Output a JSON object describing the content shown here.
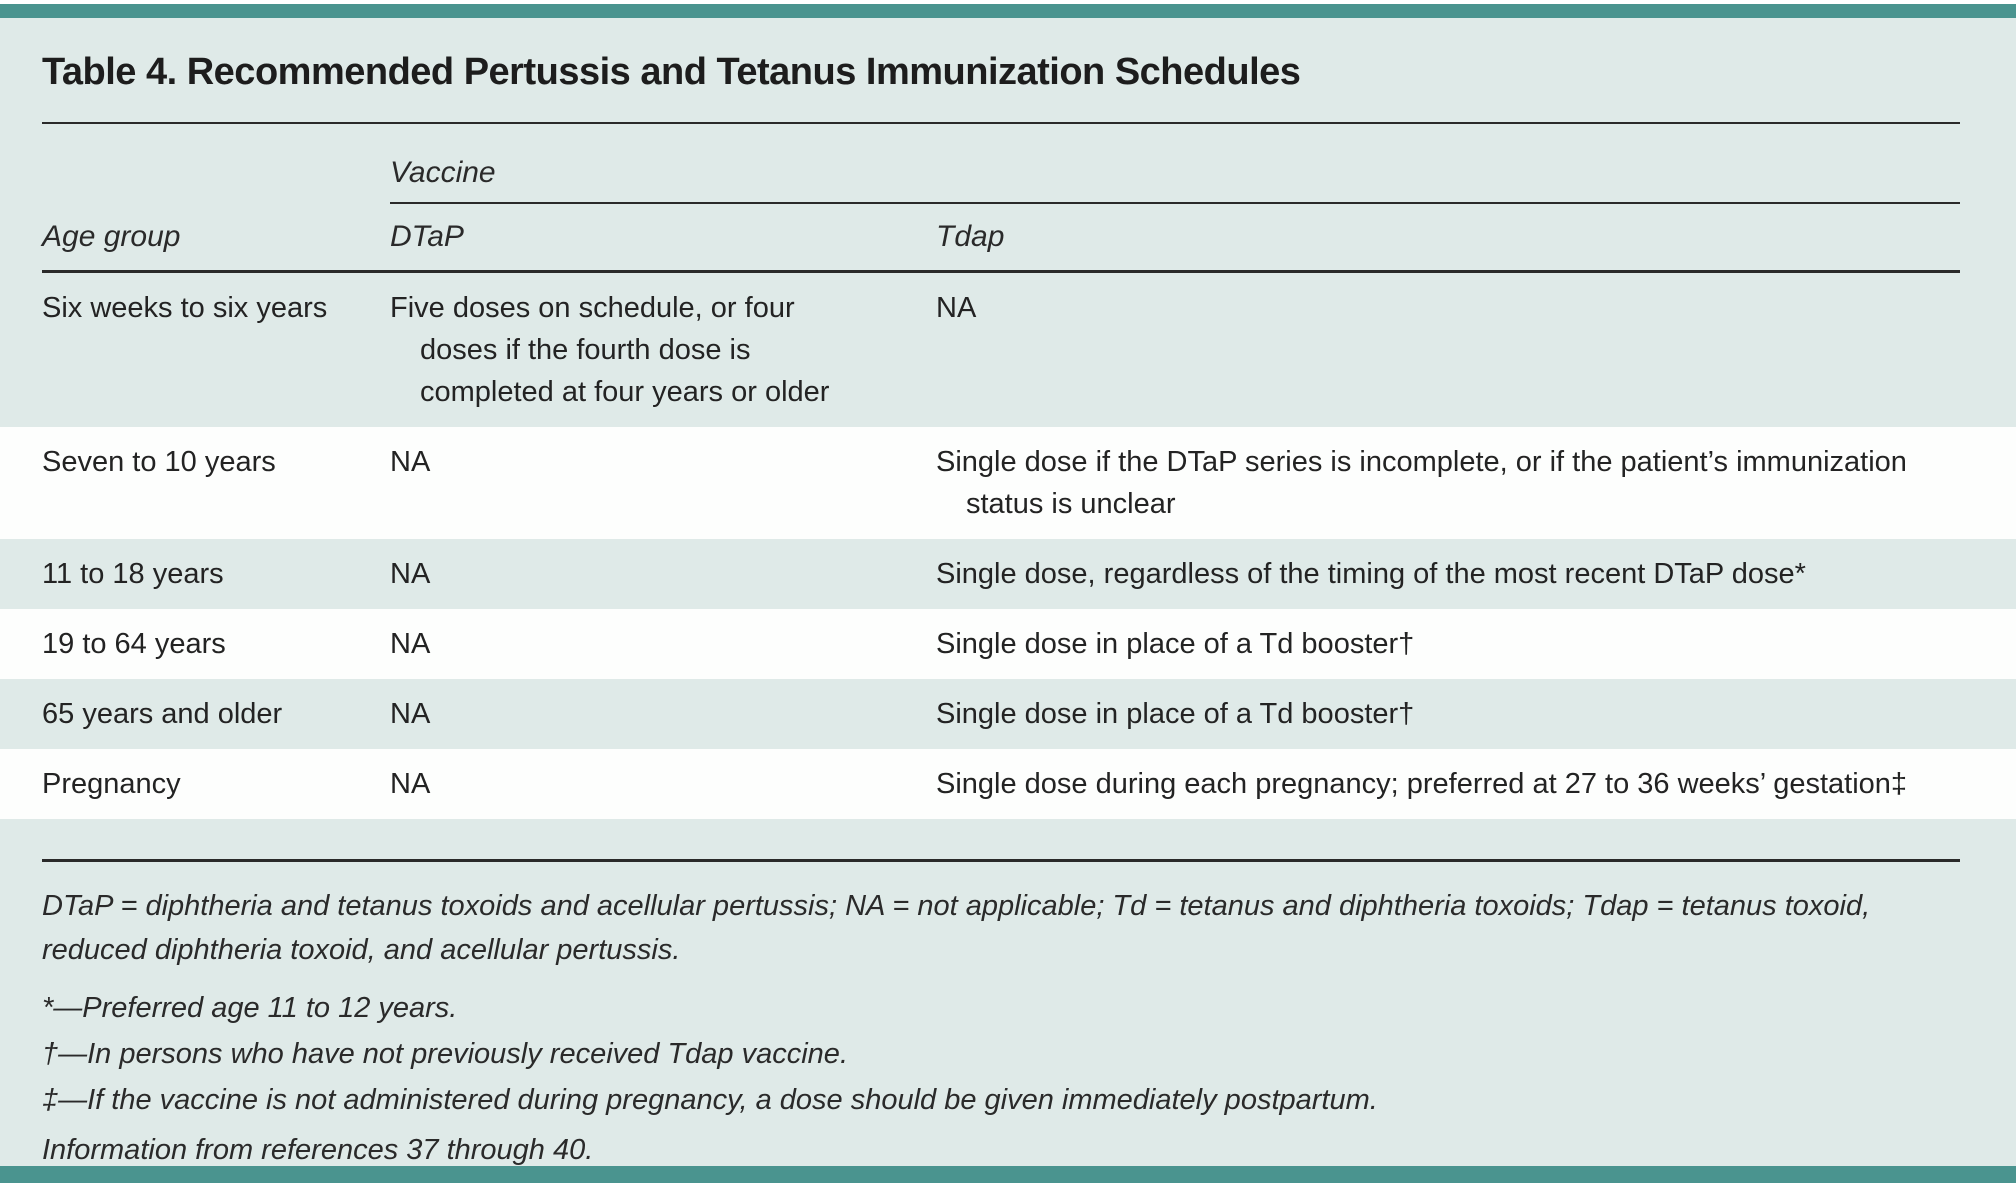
{
  "title": "Table 4. Recommended Pertussis and Tetanus Immunization Schedules",
  "table": {
    "group_header": "Vaccine",
    "columns": [
      "Age group",
      "DTaP",
      "Tdap"
    ],
    "rows": [
      {
        "age_group": "Six weeks to six years",
        "dtap": "Five doses on schedule, or four doses if the fourth dose is completed at four years or older",
        "tdap": "NA"
      },
      {
        "age_group": "Seven to 10 years",
        "dtap": "NA",
        "tdap": "Single dose if the DTaP series is incomplete, or if the patient’s immunization status is unclear"
      },
      {
        "age_group": "11 to 18 years",
        "dtap": "NA",
        "tdap": "Single dose, regardless of the timing of the most recent DTaP dose*"
      },
      {
        "age_group": "19 to 64 years",
        "dtap": "NA",
        "tdap": "Single dose in place of a Td booster†"
      },
      {
        "age_group": "65 years and older",
        "dtap": "NA",
        "tdap": "Single dose in place of a Td booster†"
      },
      {
        "age_group": "Pregnancy",
        "dtap": "NA",
        "tdap": "Single dose during each pregnancy; preferred at 27 to 36 weeks’ gestation‡"
      }
    ]
  },
  "footnotes": {
    "abbreviations": "DTaP = diphtheria and tetanus toxoids and acellular pertussis; NA = not applicable; Td = tetanus and diphtheria toxoids; Tdap = tetanus toxoid, reduced diphtheria toxoid, and acellular pertussis.",
    "notes": [
      "*—Preferred age 11 to 12 years.",
      "†—In persons who have not previously received Tdap vaccine.",
      "‡—If the vaccine is not administered during pregnancy, a dose should be given immediately postpartum."
    ],
    "source": "Information from references 37 through 40."
  },
  "colors": {
    "accent_bar": "#4a948f",
    "table_background": "#dfeae8",
    "stripe_white": "#fdfefd",
    "text": "#232323",
    "rule": "#2a2a2a"
  }
}
